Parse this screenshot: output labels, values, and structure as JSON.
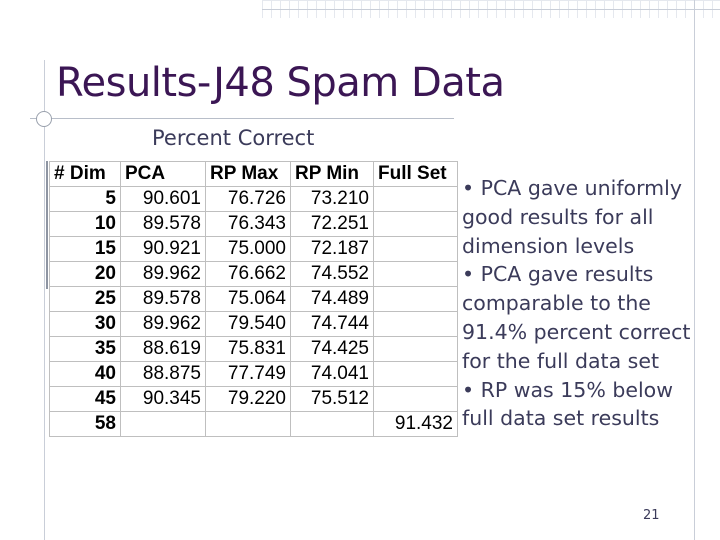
{
  "slide": {
    "title": "Results-J48 Spam Data",
    "subtitle": "Percent Correct",
    "page_number": "21"
  },
  "table": {
    "headers": [
      "# Dim",
      "PCA",
      "RP Max",
      "RP Min",
      "Full Set"
    ],
    "rows": [
      [
        "5",
        "90.601",
        "76.726",
        "73.210",
        ""
      ],
      [
        "10",
        "89.578",
        "76.343",
        "72.251",
        ""
      ],
      [
        "15",
        "90.921",
        "75.000",
        "72.187",
        ""
      ],
      [
        "20",
        "89.962",
        "76.662",
        "74.552",
        ""
      ],
      [
        "25",
        "89.578",
        "75.064",
        "74.489",
        ""
      ],
      [
        "30",
        "89.962",
        "79.540",
        "74.744",
        ""
      ],
      [
        "35",
        "88.619",
        "75.831",
        "74.425",
        ""
      ],
      [
        "40",
        "88.875",
        "77.749",
        "74.041",
        ""
      ],
      [
        "45",
        "90.345",
        "79.220",
        "75.512",
        ""
      ],
      [
        "58",
        "",
        "",
        "",
        "91.432"
      ]
    ]
  },
  "bullets": {
    "lines": [
      "• PCA gave uniformly",
      "good results for all",
      "dimension levels",
      "• PCA gave results",
      "comparable to the",
      "91.4% percent correct",
      "for the full data set",
      "• RP was 15% below",
      "full data set results"
    ]
  }
}
